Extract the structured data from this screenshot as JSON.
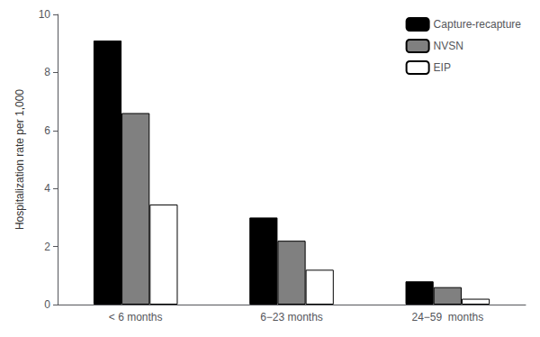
{
  "chart_data": {
    "type": "bar",
    "categories": [
      "< 6 months",
      "6−23 months",
      "24−59  months"
    ],
    "series": [
      {
        "name": "Capture-recapture",
        "color": "#000000",
        "values": [
          9.1,
          3.0,
          0.8
        ]
      },
      {
        "name": "NVSN",
        "color": "#808080",
        "values": [
          6.6,
          2.2,
          0.6
        ]
      },
      {
        "name": "EIP",
        "color": "#ffffff",
        "values": [
          3.45,
          1.2,
          0.2
        ]
      }
    ],
    "ylabel": "Hospitalization rate per 1,000",
    "ylim": [
      0,
      10
    ],
    "yticks": [
      0,
      2,
      4,
      6,
      8,
      10
    ],
    "grid": false,
    "legend": "upper right"
  }
}
